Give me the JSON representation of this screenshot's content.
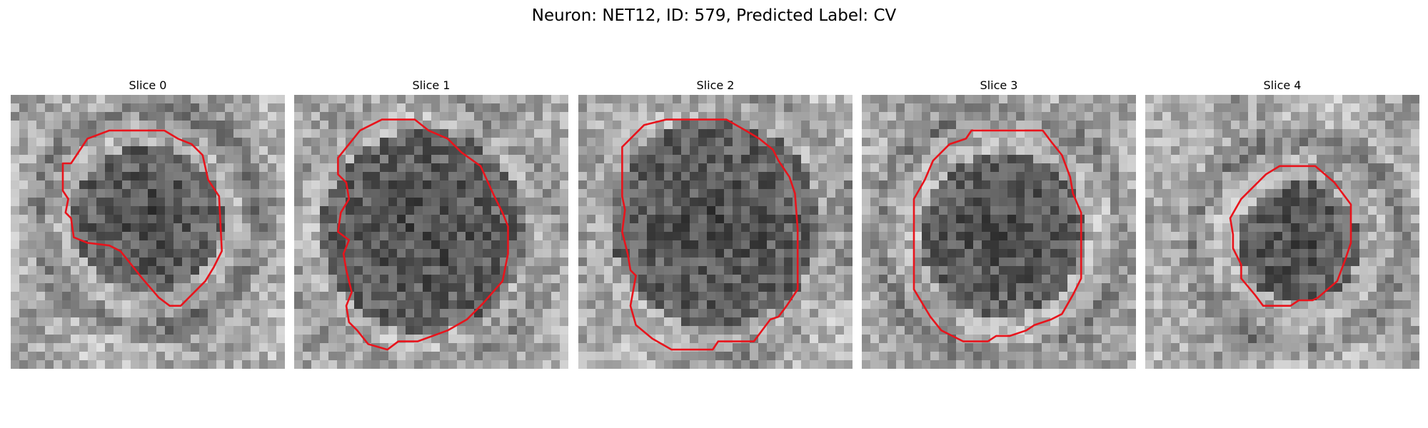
{
  "figure": {
    "title": "Neuron: NET12, ID: 579, Predicted Label: CV"
  },
  "colors": {
    "contour": "#e8141c",
    "background": "#ffffff"
  },
  "panels": [
    {
      "title": "Slice 0"
    },
    {
      "title": "Slice 1"
    },
    {
      "title": "Slice 2"
    },
    {
      "title": "Slice 3"
    },
    {
      "title": "Slice 4"
    }
  ]
}
